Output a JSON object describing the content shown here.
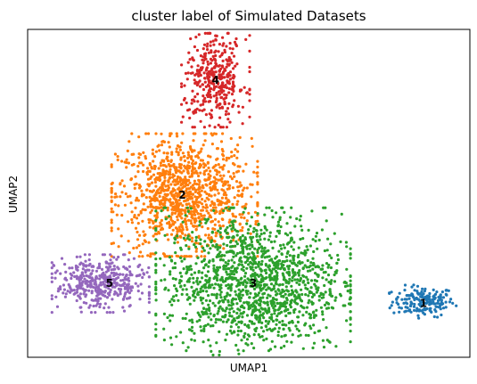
{
  "chart_data": {
    "type": "scatter",
    "title": "cluster label of Simulated Datasets",
    "xlabel": "UMAP1",
    "ylabel": "UMAP2",
    "xticks": [],
    "yticks": [],
    "grid": false,
    "legend": "none",
    "clusters": [
      {
        "label": "1",
        "color": "#1f77b4",
        "n": 180,
        "center": [
          0.895,
          0.17
        ],
        "spread": [
          0.035,
          0.023
        ],
        "label_pos": [
          0.895,
          0.165
        ]
      },
      {
        "label": "2",
        "color": "#ff7f0e",
        "n": 1100,
        "center": [
          0.355,
          0.495
        ],
        "spread": [
          0.075,
          0.085
        ],
        "label_pos": [
          0.35,
          0.495
        ]
      },
      {
        "label": "3",
        "color": "#2ca02c",
        "n": 1500,
        "center": [
          0.51,
          0.225
        ],
        "spread": [
          0.1,
          0.105
        ],
        "label_pos": [
          0.51,
          0.225
        ]
      },
      {
        "label": "4",
        "color": "#d62728",
        "n": 380,
        "center": [
          0.425,
          0.845
        ],
        "spread": [
          0.035,
          0.065
        ],
        "label_pos": [
          0.425,
          0.845
        ]
      },
      {
        "label": "5",
        "color": "#9467bd",
        "n": 420,
        "center": [
          0.165,
          0.225
        ],
        "spread": [
          0.05,
          0.04
        ],
        "label_pos": [
          0.185,
          0.225
        ]
      }
    ]
  }
}
